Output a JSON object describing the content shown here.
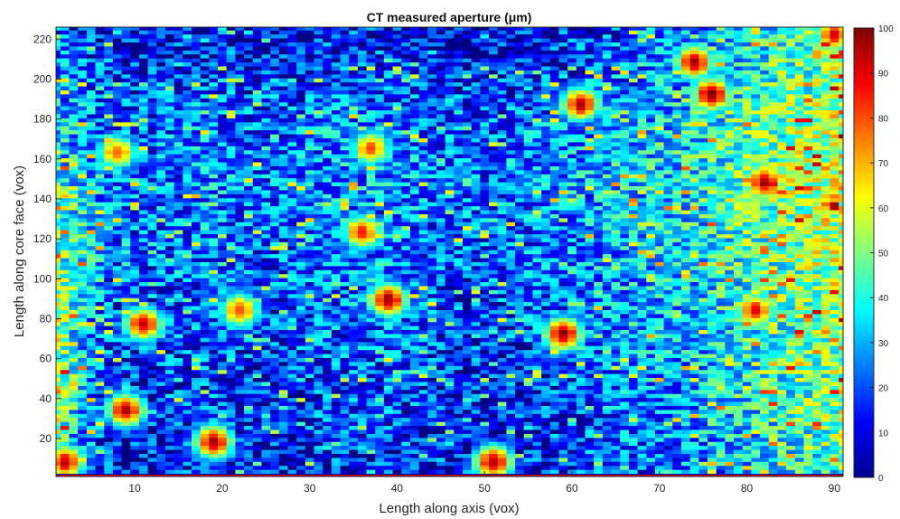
{
  "chart_data": {
    "type": "heatmap",
    "title": "CT measured aperture (μm)",
    "xlabel": "Length along axis (vox)",
    "ylabel": "Length along core face (vox)",
    "x_ticks": [
      "10",
      "20",
      "30",
      "40",
      "50",
      "60",
      "70",
      "80",
      "90"
    ],
    "y_ticks": [
      "20",
      "40",
      "60",
      "80",
      "100",
      "120",
      "140",
      "160",
      "180",
      "200",
      "220"
    ],
    "xlim": [
      1,
      91
    ],
    "ylim": [
      1,
      226
    ],
    "colorbar": {
      "colormap": "jet",
      "range": [
        0,
        100
      ],
      "ticks": [
        "0",
        "10",
        "20",
        "30",
        "40",
        "50",
        "60",
        "70",
        "80",
        "90",
        "100"
      ]
    },
    "grid": {
      "nx": 91,
      "ny": 113,
      "cell_size_vox": [
        1,
        2
      ],
      "base": [
        [
          46,
          34,
          24,
          18,
          14,
          12,
          12,
          12,
          13,
          14,
          15,
          15,
          14,
          13,
          12,
          12,
          13,
          14,
          15,
          16,
          16,
          16,
          16,
          16,
          15,
          14,
          13,
          12,
          11,
          11,
          11,
          12,
          13,
          14,
          15,
          16,
          17,
          18,
          19,
          20,
          21,
          22,
          23,
          24,
          26,
          28,
          30,
          32,
          34,
          36,
          38,
          40,
          42,
          44,
          46
        ],
        [
          52,
          38,
          28,
          20,
          16,
          14,
          14,
          14,
          15,
          16,
          17,
          17,
          16,
          15,
          14,
          14,
          15,
          16,
          17,
          18,
          18,
          18,
          18,
          18,
          17,
          16,
          15,
          14,
          13,
          13,
          13,
          14,
          15,
          16,
          17,
          18,
          19,
          21,
          22,
          23,
          24,
          25,
          26,
          27,
          29,
          31,
          33,
          35,
          37,
          39,
          41,
          43,
          45,
          47,
          49
        ],
        [
          54,
          40,
          30,
          22,
          18,
          16,
          16,
          16,
          17,
          18,
          19,
          19,
          18,
          17,
          16,
          16,
          17,
          18,
          19,
          20,
          20,
          20,
          20,
          20,
          19,
          18,
          17,
          16,
          15,
          15,
          15,
          16,
          17,
          18,
          19,
          20,
          21,
          23,
          24,
          25,
          26,
          27,
          28,
          29,
          31,
          33,
          35,
          37,
          39,
          41,
          43,
          45,
          47,
          49,
          51
        ],
        [
          52,
          42,
          32,
          24,
          20,
          18,
          18,
          18,
          19,
          20,
          21,
          21,
          20,
          19,
          18,
          18,
          19,
          20,
          21,
          22,
          22,
          22,
          22,
          22,
          21,
          20,
          19,
          18,
          17,
          17,
          17,
          18,
          19,
          20,
          21,
          22,
          23,
          25,
          26,
          27,
          28,
          29,
          30,
          31,
          33,
          35,
          37,
          39,
          41,
          43,
          45,
          47,
          49,
          51,
          53
        ],
        [
          50,
          44,
          36,
          28,
          22,
          20,
          20,
          20,
          21,
          22,
          23,
          23,
          22,
          21,
          20,
          20,
          21,
          22,
          23,
          24,
          24,
          24,
          24,
          24,
          23,
          22,
          21,
          20,
          19,
          19,
          19,
          20,
          21,
          22,
          23,
          24,
          25,
          27,
          28,
          29,
          30,
          31,
          32,
          33,
          35,
          37,
          39,
          41,
          43,
          45,
          47,
          49,
          51,
          53,
          55
        ],
        [
          46,
          42,
          36,
          30,
          24,
          22,
          22,
          22,
          23,
          24,
          25,
          25,
          24,
          23,
          22,
          22,
          23,
          24,
          25,
          26,
          26,
          26,
          26,
          26,
          25,
          24,
          23,
          22,
          21,
          21,
          21,
          22,
          23,
          24,
          25,
          26,
          27,
          29,
          30,
          31,
          32,
          33,
          34,
          35,
          37,
          39,
          41,
          43,
          45,
          47,
          49,
          51,
          53,
          55,
          57
        ],
        [
          40,
          38,
          34,
          30,
          26,
          24,
          24,
          24,
          25,
          26,
          27,
          27,
          26,
          25,
          24,
          24,
          25,
          26,
          27,
          28,
          28,
          28,
          28,
          28,
          27,
          26,
          25,
          24,
          23,
          23,
          23,
          24,
          25,
          26,
          27,
          28,
          29,
          31,
          32,
          33,
          34,
          35,
          36,
          37,
          39,
          41,
          43,
          45,
          47,
          49,
          51,
          53,
          55,
          57,
          59
        ],
        [
          32,
          30,
          28,
          26,
          24,
          22,
          22,
          22,
          23,
          24,
          25,
          25,
          24,
          23,
          22,
          22,
          23,
          24,
          25,
          26,
          26,
          26,
          26,
          26,
          25,
          24,
          23,
          22,
          21,
          21,
          21,
          22,
          23,
          24,
          25,
          26,
          27,
          29,
          30,
          31,
          32,
          33,
          34,
          35,
          37,
          39,
          41,
          43,
          45,
          47,
          49,
          51,
          53,
          55,
          57
        ],
        [
          26,
          24,
          22,
          20,
          18,
          16,
          16,
          16,
          17,
          18,
          19,
          19,
          18,
          17,
          16,
          16,
          17,
          18,
          19,
          20,
          20,
          20,
          20,
          20,
          19,
          18,
          17,
          16,
          15,
          15,
          15,
          16,
          17,
          18,
          19,
          20,
          21,
          23,
          24,
          25,
          26,
          27,
          28,
          29,
          31,
          33,
          35,
          37,
          39,
          41,
          43,
          45,
          47,
          49,
          51
        ],
        [
          20,
          18,
          16,
          14,
          12,
          10,
          10,
          10,
          11,
          12,
          13,
          13,
          12,
          11,
          10,
          10,
          11,
          12,
          13,
          14,
          14,
          14,
          14,
          14,
          13,
          12,
          11,
          10,
          9,
          9,
          9,
          10,
          11,
          12,
          13,
          14,
          15,
          17,
          18,
          19,
          20,
          21,
          22,
          23,
          25,
          27,
          29,
          31,
          33,
          35,
          37,
          39,
          41,
          43,
          45
        ]
      ],
      "hotspots": [
        {
          "x": 11,
          "y": 77,
          "value": 92
        },
        {
          "x": 9,
          "y": 34,
          "value": 95
        },
        {
          "x": 19,
          "y": 18,
          "value": 96
        },
        {
          "x": 2,
          "y": 8,
          "value": 94
        },
        {
          "x": 39,
          "y": 89,
          "value": 97
        },
        {
          "x": 59,
          "y": 72,
          "value": 98
        },
        {
          "x": 51,
          "y": 8,
          "value": 96
        },
        {
          "x": 61,
          "y": 187,
          "value": 95
        },
        {
          "x": 76,
          "y": 192,
          "value": 100
        },
        {
          "x": 74,
          "y": 208,
          "value": 96
        },
        {
          "x": 82,
          "y": 148,
          "value": 97
        },
        {
          "x": 36,
          "y": 123,
          "value": 85
        },
        {
          "x": 81,
          "y": 84,
          "value": 88
        },
        {
          "x": 90,
          "y": 222,
          "value": 90
        },
        {
          "x": 37,
          "y": 165,
          "value": 80
        },
        {
          "x": 8,
          "y": 163,
          "value": 78
        },
        {
          "x": 22,
          "y": 84,
          "value": 82
        }
      ]
    }
  }
}
